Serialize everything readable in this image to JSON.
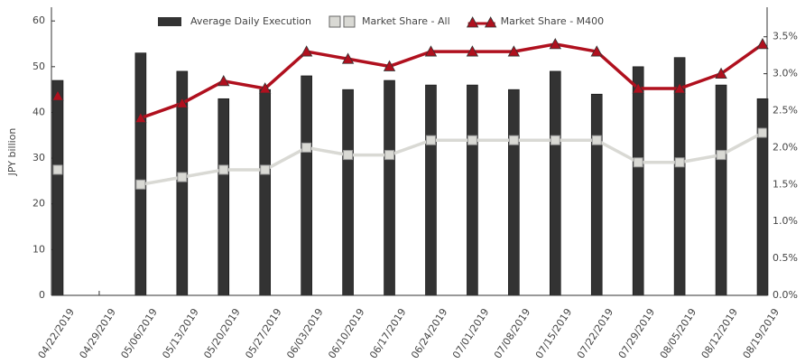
{
  "chart_data": {
    "type": "bar_line",
    "y_label": "JPY billion",
    "categories": [
      "04/22/2019",
      "04/29/2019",
      "05/06/2019",
      "05/13/2019",
      "05/20/2019",
      "05/27/2019",
      "06/03/2019",
      "06/10/2019",
      "06/17/2019",
      "06/24/2019",
      "07/01/2019",
      "07/08/2019",
      "07/15/2019",
      "07/22/2019",
      "07/29/2019",
      "08/05/2019",
      "08/12/2019",
      "08/19/2019"
    ],
    "series": [
      {
        "name": "Average Daily Execution",
        "type": "bar",
        "color": "#333333",
        "values": [
          47,
          null,
          53,
          49,
          43,
          45,
          48,
          45,
          47,
          46,
          46,
          45,
          49,
          44,
          50,
          52,
          46,
          43
        ]
      },
      {
        "name": "Market Share - All",
        "type": "line",
        "marker": "square",
        "axis": "y2",
        "color": "#d9d9d4",
        "values": [
          1.7,
          null,
          1.5,
          1.6,
          1.7,
          1.7,
          2.0,
          1.9,
          1.9,
          2.1,
          2.1,
          2.1,
          2.1,
          2.1,
          1.8,
          1.8,
          1.9,
          2.2
        ]
      },
      {
        "name": "Market Share - M400",
        "type": "line",
        "marker": "triangle",
        "axis": "y2",
        "color": "#b0101e",
        "values": [
          2.7,
          null,
          2.4,
          2.6,
          2.9,
          2.8,
          3.3,
          3.2,
          3.1,
          3.3,
          3.3,
          3.3,
          3.4,
          3.3,
          2.8,
          2.8,
          3.0,
          3.4
        ]
      }
    ],
    "ylim": [
      0,
      63
    ],
    "yticks": [
      0,
      10,
      20,
      30,
      40,
      50,
      60
    ],
    "y2lim": [
      0,
      3.9
    ],
    "y2ticks": [
      {
        "value": 0,
        "label": "0.0%"
      },
      {
        "value": 0.5,
        "label": "0.5%"
      },
      {
        "value": 1.0,
        "label": "1.0%"
      },
      {
        "value": 1.5,
        "label": "1.5%"
      },
      {
        "value": 2.0,
        "label": "2.0%"
      },
      {
        "value": 2.5,
        "label": "2.5%"
      },
      {
        "value": 3.0,
        "label": "3.0%"
      },
      {
        "value": 3.5,
        "label": "3.5%"
      }
    ],
    "legend": "top"
  }
}
